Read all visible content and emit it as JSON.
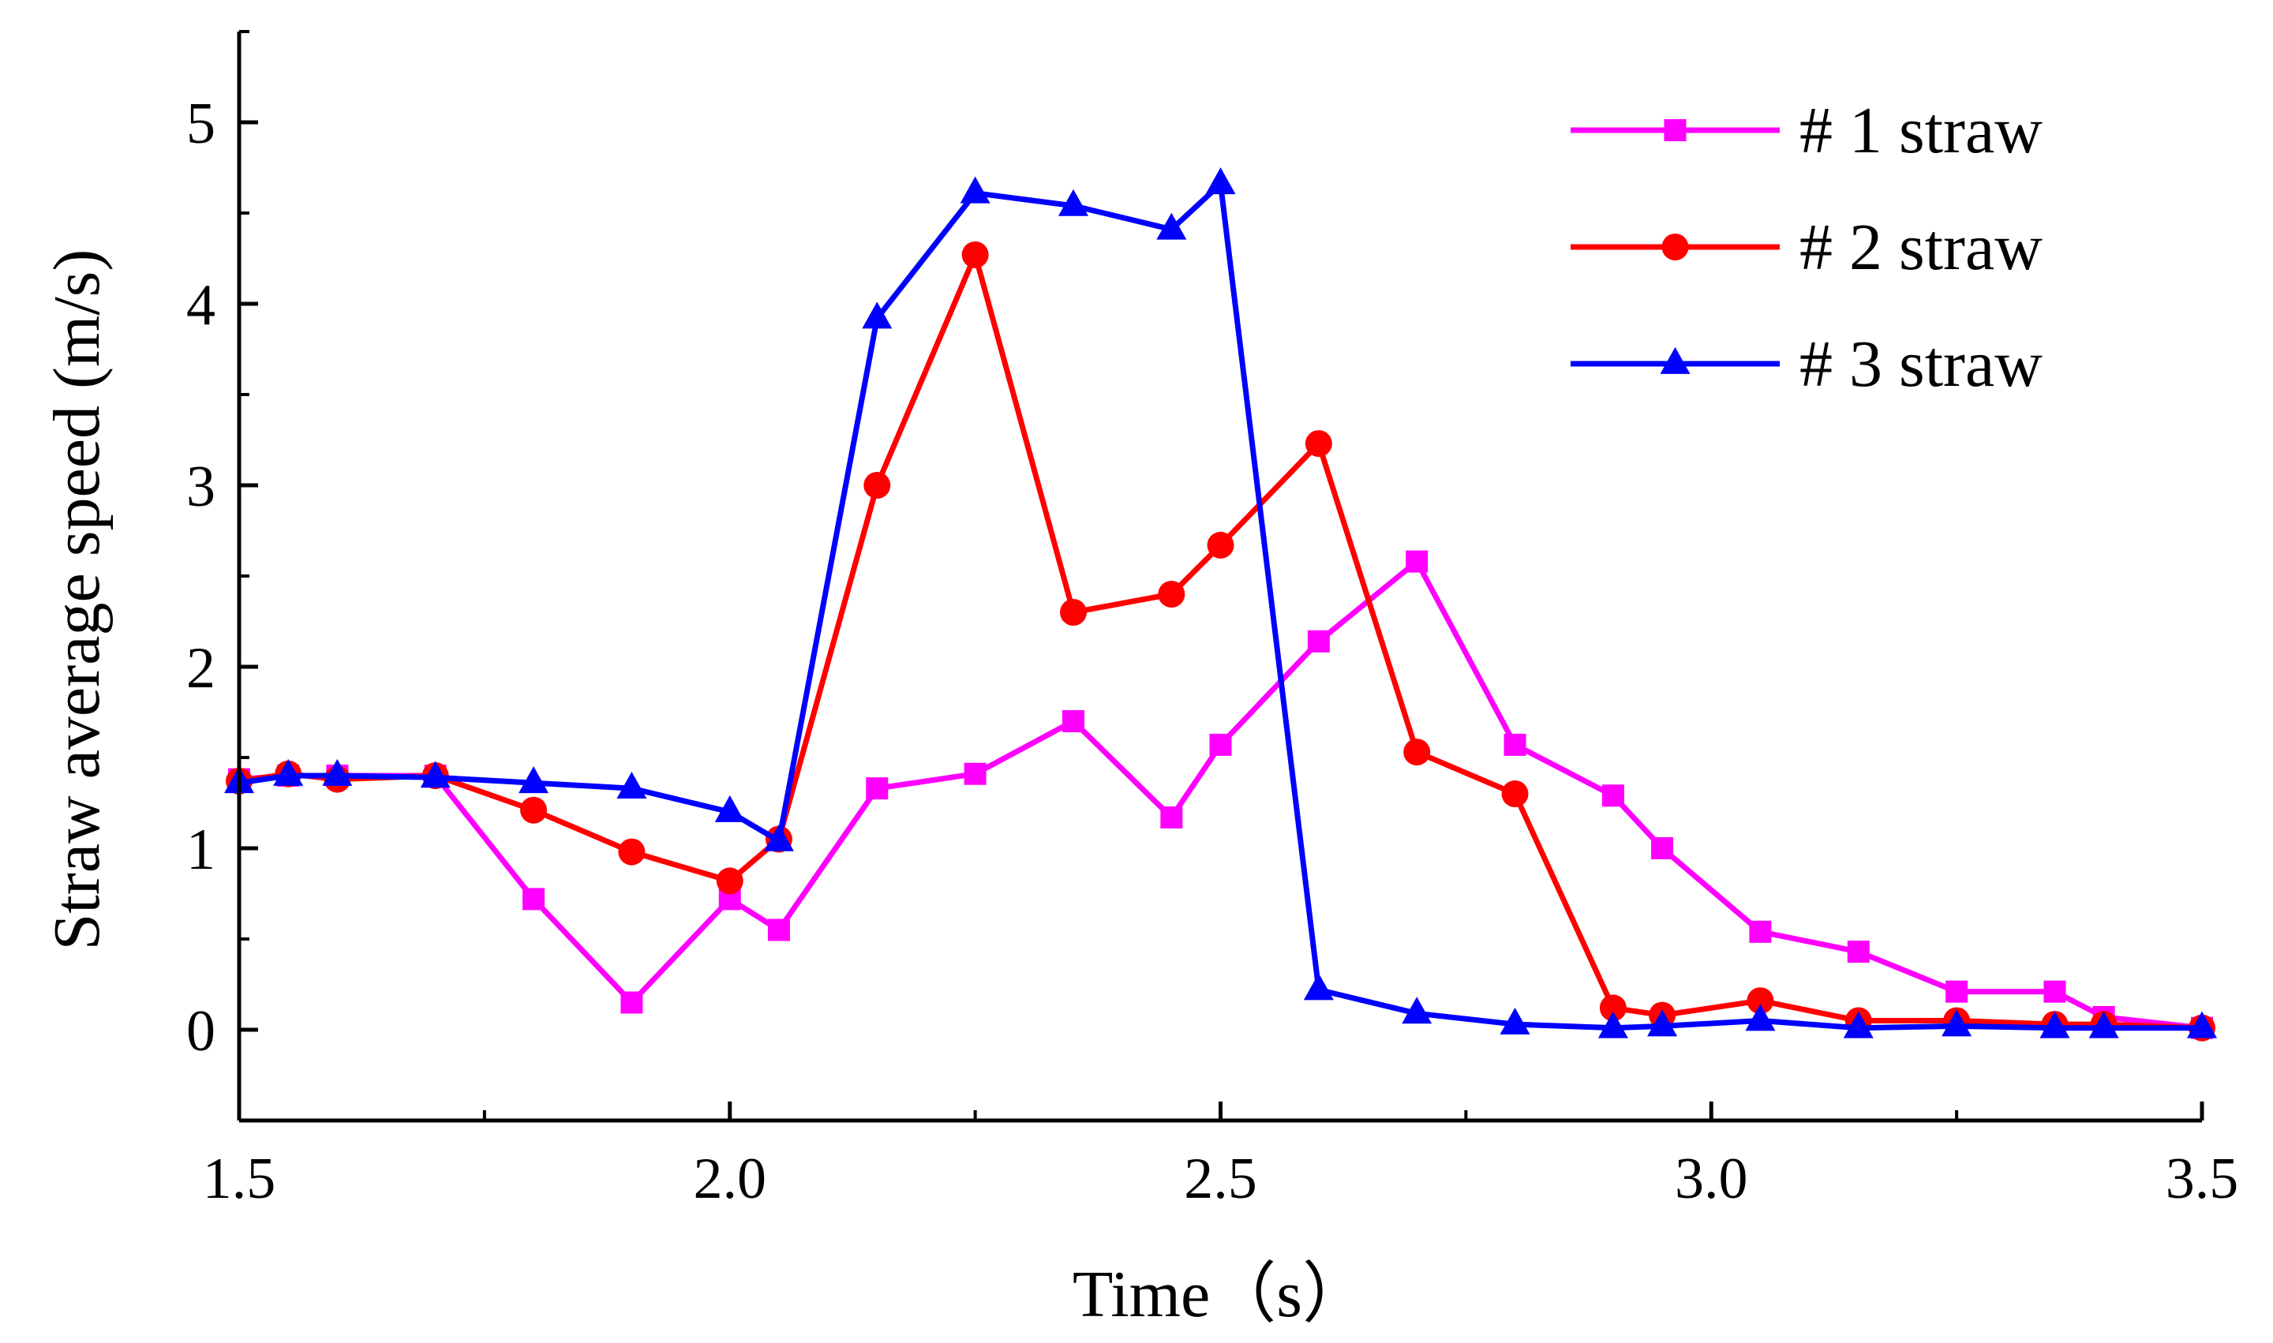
{
  "chart_data": {
    "type": "line",
    "title": "",
    "xlabel": "Time（s）",
    "ylabel": "Straw average speed (m/s)",
    "xlim": [
      1.5,
      3.5
    ],
    "ylim": [
      -0.5,
      5.5
    ],
    "xticks": [
      1.5,
      2.0,
      2.5,
      3.0,
      3.5
    ],
    "xtick_labels": [
      "1.5",
      "2.0",
      "2.5",
      "3.0",
      "3.5"
    ],
    "yticks": [
      0,
      1,
      2,
      3,
      4,
      5
    ],
    "ytick_labels": [
      "0",
      "1",
      "2",
      "3",
      "4",
      "5"
    ],
    "grid": false,
    "legend_position": "top-right",
    "series": [
      {
        "name": "# 1 straw",
        "color": "#FF00FF",
        "marker": "square",
        "x": [
          1.5,
          1.55,
          1.6,
          1.7,
          1.8,
          1.9,
          2.0,
          2.05,
          2.15,
          2.25,
          2.35,
          2.45,
          2.5,
          2.6,
          2.7,
          2.8,
          2.9,
          2.95,
          3.05,
          3.15,
          3.25,
          3.35,
          3.4,
          3.5
        ],
        "y": [
          1.38,
          1.4,
          1.4,
          1.4,
          0.72,
          0.15,
          0.72,
          0.55,
          1.33,
          1.41,
          1.7,
          1.17,
          1.57,
          2.14,
          2.58,
          1.57,
          1.29,
          1.0,
          0.54,
          0.43,
          0.21,
          0.21,
          0.07,
          0.01
        ]
      },
      {
        "name": "# 2 straw",
        "color": "#FF0000",
        "marker": "circle",
        "x": [
          1.5,
          1.55,
          1.6,
          1.7,
          1.8,
          1.9,
          2.0,
          2.05,
          2.15,
          2.25,
          2.35,
          2.45,
          2.5,
          2.6,
          2.7,
          2.8,
          2.9,
          2.95,
          3.05,
          3.15,
          3.25,
          3.35,
          3.4,
          3.5
        ],
        "y": [
          1.37,
          1.41,
          1.38,
          1.4,
          1.21,
          0.98,
          0.82,
          1.05,
          3.0,
          4.27,
          2.3,
          2.4,
          2.67,
          3.23,
          1.53,
          1.3,
          0.12,
          0.08,
          0.16,
          0.05,
          0.05,
          0.03,
          0.03,
          0.01
        ]
      },
      {
        "name": "# 3 straw",
        "color": "#0000FF",
        "marker": "triangle",
        "x": [
          1.5,
          1.55,
          1.6,
          1.7,
          1.8,
          1.9,
          2.0,
          2.05,
          2.15,
          2.25,
          2.35,
          2.45,
          2.5,
          2.6,
          2.7,
          2.8,
          2.9,
          2.95,
          3.05,
          3.15,
          3.25,
          3.35,
          3.4,
          3.5
        ],
        "y": [
          1.36,
          1.4,
          1.4,
          1.39,
          1.36,
          1.33,
          1.2,
          1.04,
          3.92,
          4.61,
          4.54,
          4.41,
          4.66,
          0.22,
          0.09,
          0.03,
          0.01,
          0.02,
          0.05,
          0.01,
          0.02,
          0.01,
          0.01,
          0.01
        ]
      }
    ]
  }
}
